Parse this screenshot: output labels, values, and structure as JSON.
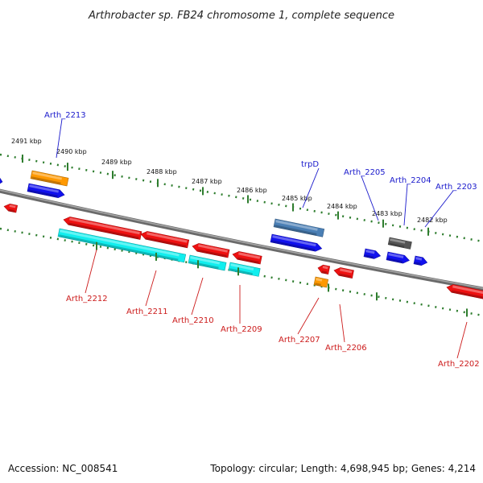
{
  "title": "Arthrobacter sp. FB24 chromosome 1, complete sequence",
  "footer": {
    "accession": "Accession: NC_008541",
    "summary": "Topology: circular; Length: 4,698,945 bp; Genes: 4,214"
  },
  "colors": {
    "backbone": "#808080",
    "tick": "#2e7d2e",
    "plus_label": "#1a1acc",
    "minus_label": "#cc1a1a",
    "red": "#ee1111",
    "blue": "#1111ee",
    "cyan": "#11eeee",
    "orange": "#ff9900",
    "steel": "#4a7fb5",
    "gray": "#555555"
  },
  "chart_data": {
    "type": "diagram",
    "axis_ticks": [
      "2491 kbp",
      "2490 kbp",
      "2489 kbp",
      "2488 kbp",
      "2487 kbp",
      "2486 kbp",
      "2485 kbp",
      "2484 kbp",
      "2483 kbp",
      "2482 kbp"
    ],
    "labels_top": [
      "Arth_2213",
      "trpD",
      "Arth_2205",
      "Arth_2204",
      "Arth_2203"
    ],
    "labels_bottom": [
      "Arth_2212",
      "Arth_2211",
      "Arth_2210",
      "Arth_2209",
      "Arth_2207",
      "Arth_2206",
      "Arth_2202"
    ]
  }
}
